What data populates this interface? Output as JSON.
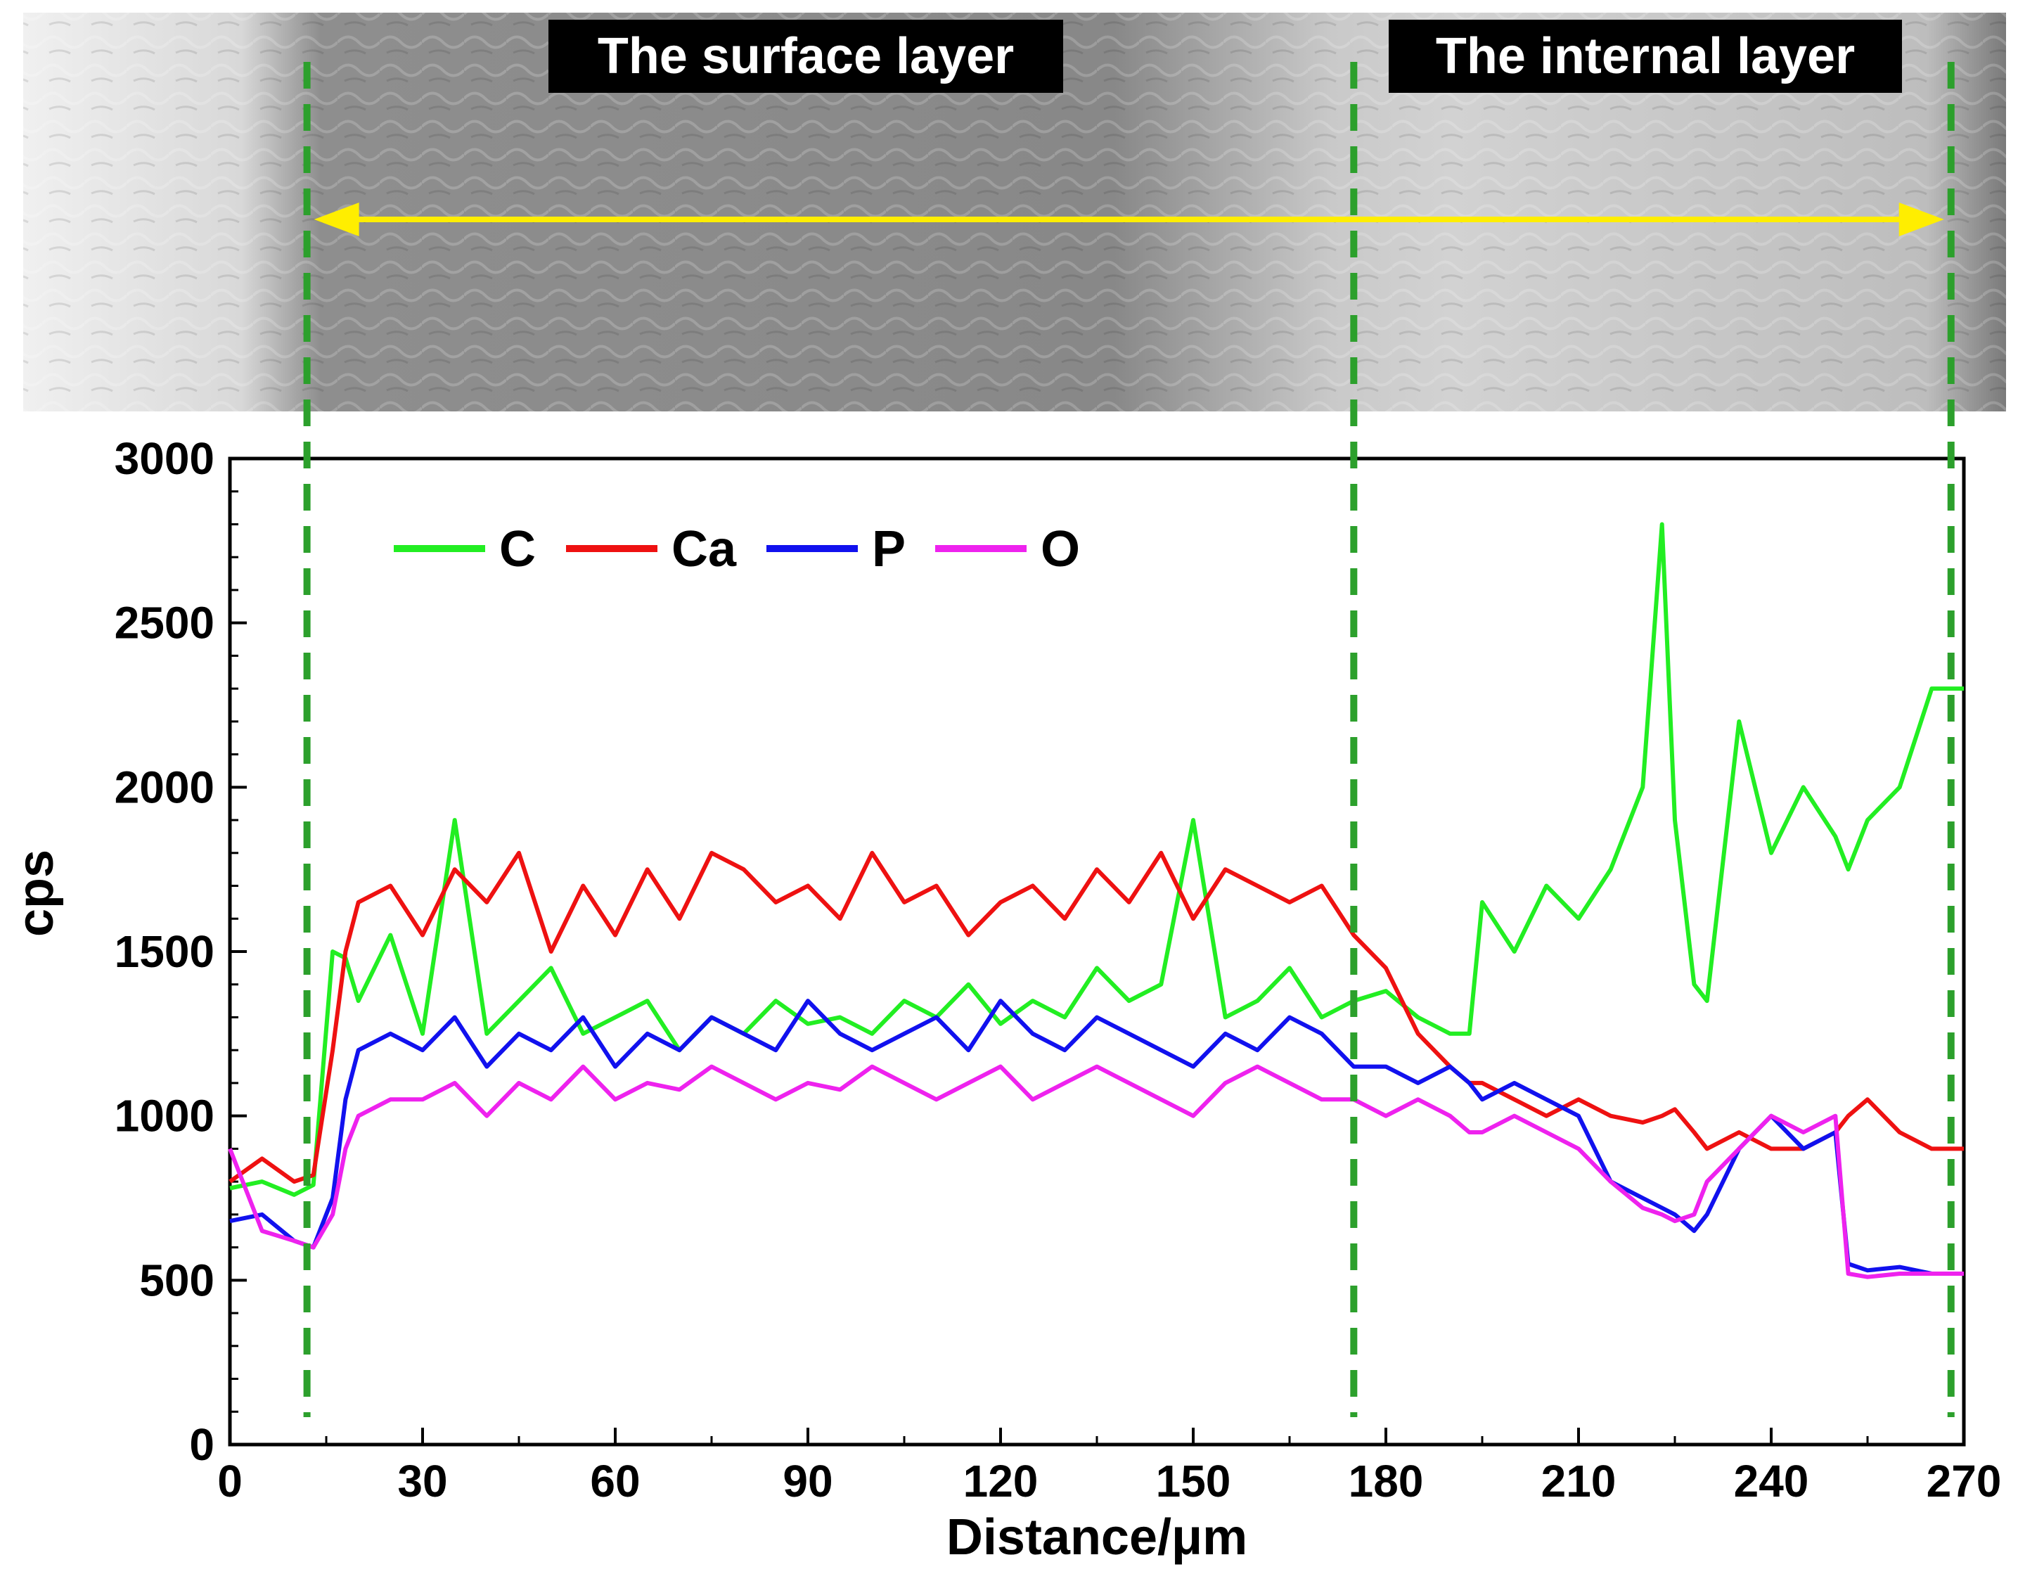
{
  "chart_data": {
    "type": "line",
    "xlabel": "Distance/μm",
    "ylabel": "cps",
    "xlim": [
      0,
      270
    ],
    "ylim": [
      0,
      3000
    ],
    "x_ticks": [
      0,
      30,
      60,
      90,
      120,
      150,
      180,
      210,
      240,
      270
    ],
    "y_ticks": [
      0,
      500,
      1000,
      1500,
      2000,
      2500,
      3000
    ],
    "legend_position": "top-left",
    "colors": {
      "C": "#22ee22",
      "Ca": "#ee1111",
      "P": "#1111ee",
      "O": "#ee22ee",
      "boundary": "#2ca02c",
      "arrow": "#ffee00"
    },
    "layer_labels": [
      "The surface layer",
      "The internal layer"
    ],
    "boundaries": [
      12,
      175,
      268
    ],
    "arrow_range": [
      12,
      268
    ],
    "x": [
      0,
      5,
      10,
      13,
      16,
      18,
      20,
      25,
      30,
      35,
      40,
      45,
      50,
      55,
      60,
      65,
      70,
      75,
      80,
      85,
      90,
      95,
      100,
      105,
      110,
      115,
      120,
      125,
      130,
      135,
      140,
      145,
      150,
      155,
      160,
      165,
      170,
      175,
      180,
      185,
      190,
      193,
      195,
      200,
      205,
      210,
      215,
      220,
      223,
      225,
      228,
      230,
      235,
      240,
      245,
      250,
      252,
      255,
      260,
      265,
      270
    ],
    "series": [
      {
        "name": "C",
        "values": [
          780,
          800,
          760,
          790,
          1500,
          1480,
          1350,
          1550,
          1250,
          1900,
          1250,
          1350,
          1450,
          1250,
          1300,
          1350,
          1200,
          1300,
          1250,
          1350,
          1280,
          1300,
          1250,
          1350,
          1300,
          1400,
          1280,
          1350,
          1300,
          1450,
          1350,
          1400,
          1900,
          1300,
          1350,
          1450,
          1300,
          1350,
          1380,
          1300,
          1250,
          1250,
          1650,
          1500,
          1700,
          1600,
          1750,
          2000,
          2800,
          1900,
          1400,
          1350,
          2200,
          1800,
          2000,
          1850,
          1750,
          1900,
          2000,
          2300,
          2300
        ]
      },
      {
        "name": "Ca",
        "values": [
          800,
          870,
          800,
          820,
          1200,
          1500,
          1650,
          1700,
          1550,
          1750,
          1650,
          1800,
          1500,
          1700,
          1550,
          1750,
          1600,
          1800,
          1750,
          1650,
          1700,
          1600,
          1800,
          1650,
          1700,
          1550,
          1650,
          1700,
          1600,
          1750,
          1650,
          1800,
          1600,
          1750,
          1700,
          1650,
          1700,
          1550,
          1450,
          1250,
          1150,
          1100,
          1100,
          1050,
          1000,
          1050,
          1000,
          980,
          1000,
          1020,
          950,
          900,
          950,
          900,
          900,
          950,
          1000,
          1050,
          950,
          900,
          900
        ]
      },
      {
        "name": "P",
        "values": [
          680,
          700,
          620,
          600,
          750,
          1050,
          1200,
          1250,
          1200,
          1300,
          1150,
          1250,
          1200,
          1300,
          1150,
          1250,
          1200,
          1300,
          1250,
          1200,
          1350,
          1250,
          1200,
          1250,
          1300,
          1200,
          1350,
          1250,
          1200,
          1300,
          1250,
          1200,
          1150,
          1250,
          1200,
          1300,
          1250,
          1150,
          1150,
          1100,
          1150,
          1100,
          1050,
          1100,
          1050,
          1000,
          800,
          750,
          720,
          700,
          650,
          700,
          900,
          1000,
          900,
          950,
          550,
          530,
          540,
          520,
          520
        ]
      },
      {
        "name": "O",
        "values": [
          900,
          650,
          620,
          600,
          700,
          900,
          1000,
          1050,
          1050,
          1100,
          1000,
          1100,
          1050,
          1150,
          1050,
          1100,
          1080,
          1150,
          1100,
          1050,
          1100,
          1080,
          1150,
          1100,
          1050,
          1100,
          1150,
          1050,
          1100,
          1150,
          1100,
          1050,
          1000,
          1100,
          1150,
          1100,
          1050,
          1050,
          1000,
          1050,
          1000,
          950,
          950,
          1000,
          950,
          900,
          800,
          720,
          700,
          680,
          700,
          800,
          900,
          1000,
          950,
          1000,
          520,
          510,
          520,
          520,
          520
        ]
      }
    ]
  }
}
